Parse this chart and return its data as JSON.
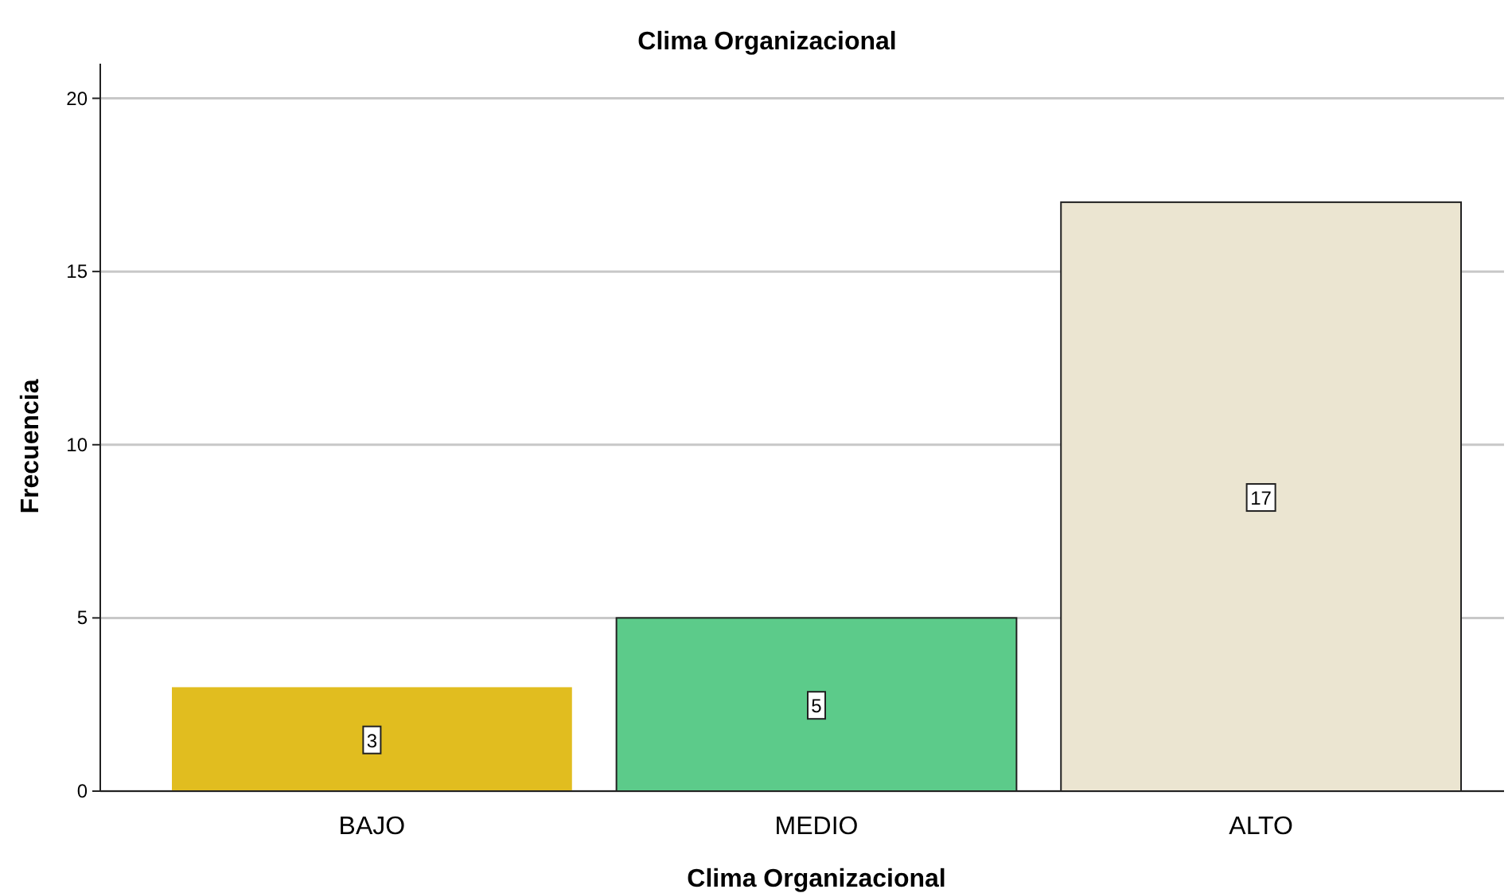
{
  "chart_data": {
    "type": "bar",
    "title": "Clima Organizacional",
    "xlabel": "Clima Organizacional",
    "ylabel": "Frecuencia",
    "categories": [
      "BAJO",
      "MEDIO",
      "ALTO"
    ],
    "values": [
      3,
      5,
      17
    ],
    "colors": [
      "#e1bd1f",
      "#5ccb8a",
      "#ebe5d1"
    ],
    "ylim": [
      0,
      21
    ],
    "yticks": [
      0,
      5,
      10,
      15,
      20
    ],
    "grid": "y",
    "data_labels": true
  }
}
